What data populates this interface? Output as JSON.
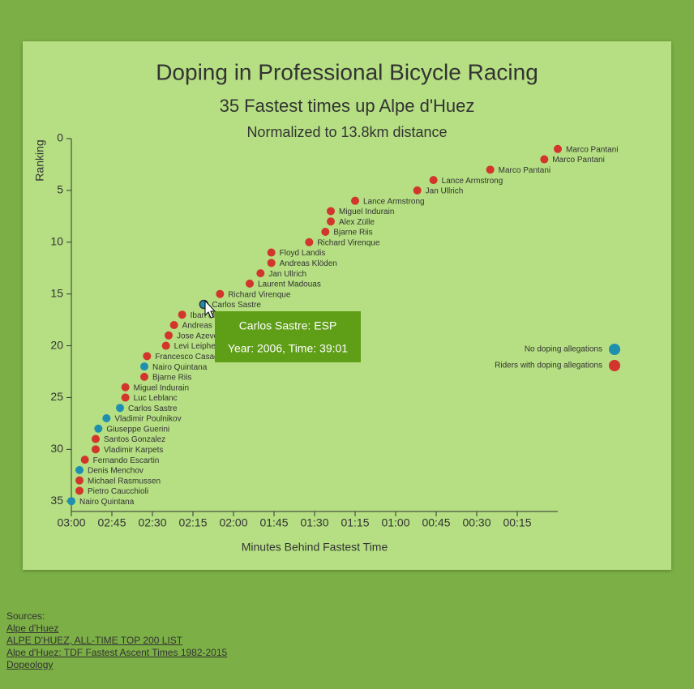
{
  "chart_data": {
    "type": "scatter",
    "title": "Doping in Professional Bicycle Racing",
    "subtitle": "35 Fastest times up Alpe d'Huez",
    "note": "Normalized to 13.8km distance",
    "y_label": "Ranking",
    "x_label": "Minutes Behind Fastest Time",
    "xlim": [
      180,
      0
    ],
    "ylim": [
      0,
      36
    ],
    "xticks": [
      {
        "value": 180,
        "label": "03:00"
      },
      {
        "value": 165,
        "label": "02:45"
      },
      {
        "value": 150,
        "label": "02:30"
      },
      {
        "value": 135,
        "label": "02:15"
      },
      {
        "value": 120,
        "label": "02:00"
      },
      {
        "value": 105,
        "label": "01:45"
      },
      {
        "value": 90,
        "label": "01:30"
      },
      {
        "value": 75,
        "label": "01:15"
      },
      {
        "value": 60,
        "label": "01:00"
      },
      {
        "value": 45,
        "label": "00:45"
      },
      {
        "value": 30,
        "label": "00:30"
      },
      {
        "value": 15,
        "label": "00:15"
      }
    ],
    "yticks": [
      0,
      5,
      10,
      15,
      20,
      25,
      30,
      35
    ],
    "legend": "right",
    "series": [
      {
        "name": "No doping allegations",
        "color": "#1e8fae",
        "x": [
          131,
          153,
          162,
          167,
          170,
          177,
          180
        ],
        "values": [
          16,
          22,
          26,
          27,
          28,
          32,
          35
        ],
        "point_labels": [
          "Carlos Sastre",
          "Nairo Quintana",
          "Carlos Sastre",
          "Vladimir Poulnikov",
          "Giuseppe Guerini",
          "Denis Menchov",
          "Nairo Quintana"
        ]
      },
      {
        "name": "Riders with doping allegations",
        "color": "#d2352b",
        "x": [
          0,
          5,
          25,
          46,
          52,
          75,
          84,
          84,
          86,
          92,
          106,
          106,
          110,
          114,
          125,
          139,
          142,
          144,
          145,
          152,
          153,
          160,
          160,
          171,
          171,
          175,
          177,
          177
        ],
        "values": [
          1,
          2,
          3,
          4,
          5,
          6,
          7,
          8,
          9,
          10,
          11,
          12,
          13,
          14,
          15,
          17,
          18,
          19,
          20,
          21,
          23,
          24,
          25,
          29,
          30,
          31,
          33,
          34
        ],
        "point_labels": [
          "Marco Pantani",
          "Marco Pantani",
          "Marco Pantani",
          "Lance Armstrong",
          "Jan Ullrich",
          "Lance Armstrong",
          "Miguel Indurain",
          "Alex Zülle",
          "Bjarne Riis",
          "Richard Virenque",
          "Floyd Landis",
          "Andreas Klöden",
          "Jan Ullrich",
          "Laurent Madouas",
          "Richard Virenque",
          "Iban Mayo",
          "Andreas Klöden",
          "Jose Azevedo",
          "Levi Leipheimer",
          "Francesco Casagrande",
          "Bjarne Riis",
          "Miguel Indurain",
          "Luc Leblanc",
          "Santos Gonzalez",
          "Vladimir Karpets",
          "Fernando Escartin",
          "Michael Rasmussen",
          "Pietro Caucchioli"
        ]
      }
    ],
    "tooltip": {
      "title": "Carlos Sastre: ESP",
      "detail": "Year: 2006, Time: 39:01"
    }
  },
  "sources": {
    "heading": "Sources:",
    "links": [
      "Alpe d'Huez",
      "ALPE D'HUEZ, ALL-TIME TOP 200 LIST",
      "Alpe d'Huez: TDF Fastest Ascent Times 1982-2015",
      "Dopeology"
    ]
  }
}
